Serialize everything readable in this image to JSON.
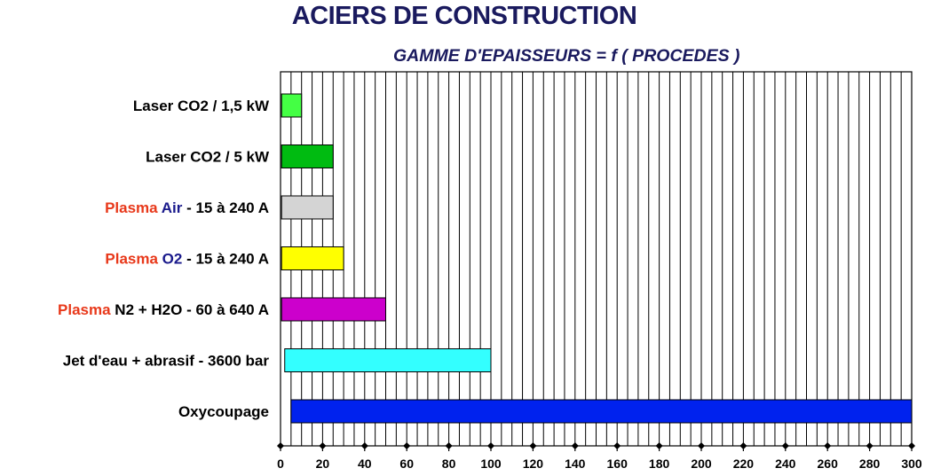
{
  "title": "ACIERS DE CONSTRUCTION",
  "subtitle": "GAMME D'EPAISSEURS = f ( PROCEDES )",
  "chart_data": {
    "type": "bar",
    "orientation": "horizontal",
    "title": "ACIERS DE CONSTRUCTION",
    "subtitle": "GAMME D'EPAISSEURS = f ( PROCEDES )",
    "xlim": [
      0,
      300
    ],
    "x_ticks": [
      0,
      20,
      40,
      60,
      80,
      100,
      120,
      140,
      160,
      180,
      200,
      220,
      240,
      260,
      280,
      300
    ],
    "minor_step": 5,
    "grid": "vertical",
    "categories": [
      {
        "segments": [
          {
            "text": "Laser CO2 / 1,5 kW",
            "color": "#000000"
          }
        ],
        "range": [
          0.5,
          10
        ],
        "color": "#44ff44"
      },
      {
        "segments": [
          {
            "text": "Laser CO2 / 5 kW",
            "color": "#000000"
          }
        ],
        "range": [
          0.5,
          25
        ],
        "color": "#00bb11"
      },
      {
        "segments": [
          {
            "text": "Plasma",
            "color": "#e8381a"
          },
          {
            "text": " Air",
            "color": "#1a1a8c"
          },
          {
            "text": " - 15 à 240 A",
            "color": "#000000"
          }
        ],
        "range": [
          0.5,
          25
        ],
        "color": "#d4d4d4"
      },
      {
        "segments": [
          {
            "text": "Plasma",
            "color": "#e8381a"
          },
          {
            "text": " O2",
            "color": "#1a1a8c"
          },
          {
            "text": " - 15 à 240 A",
            "color": "#000000"
          }
        ],
        "range": [
          0.5,
          30
        ],
        "color": "#ffff00"
      },
      {
        "segments": [
          {
            "text": "Plasma",
            "color": "#e8381a"
          },
          {
            "text": " N2 + H2O - 60 à 640 A",
            "color": "#000000"
          }
        ],
        "range": [
          0.5,
          50
        ],
        "color": "#cc00cc"
      },
      {
        "segments": [
          {
            "text": "Jet d'eau + abrasif - 3600 bar",
            "color": "#000000"
          }
        ],
        "range": [
          2,
          100
        ],
        "color": "#33ffff"
      },
      {
        "segments": [
          {
            "text": "Oxycoupage",
            "color": "#000000"
          }
        ],
        "range": [
          5,
          300
        ],
        "color": "#0022ee"
      }
    ]
  }
}
